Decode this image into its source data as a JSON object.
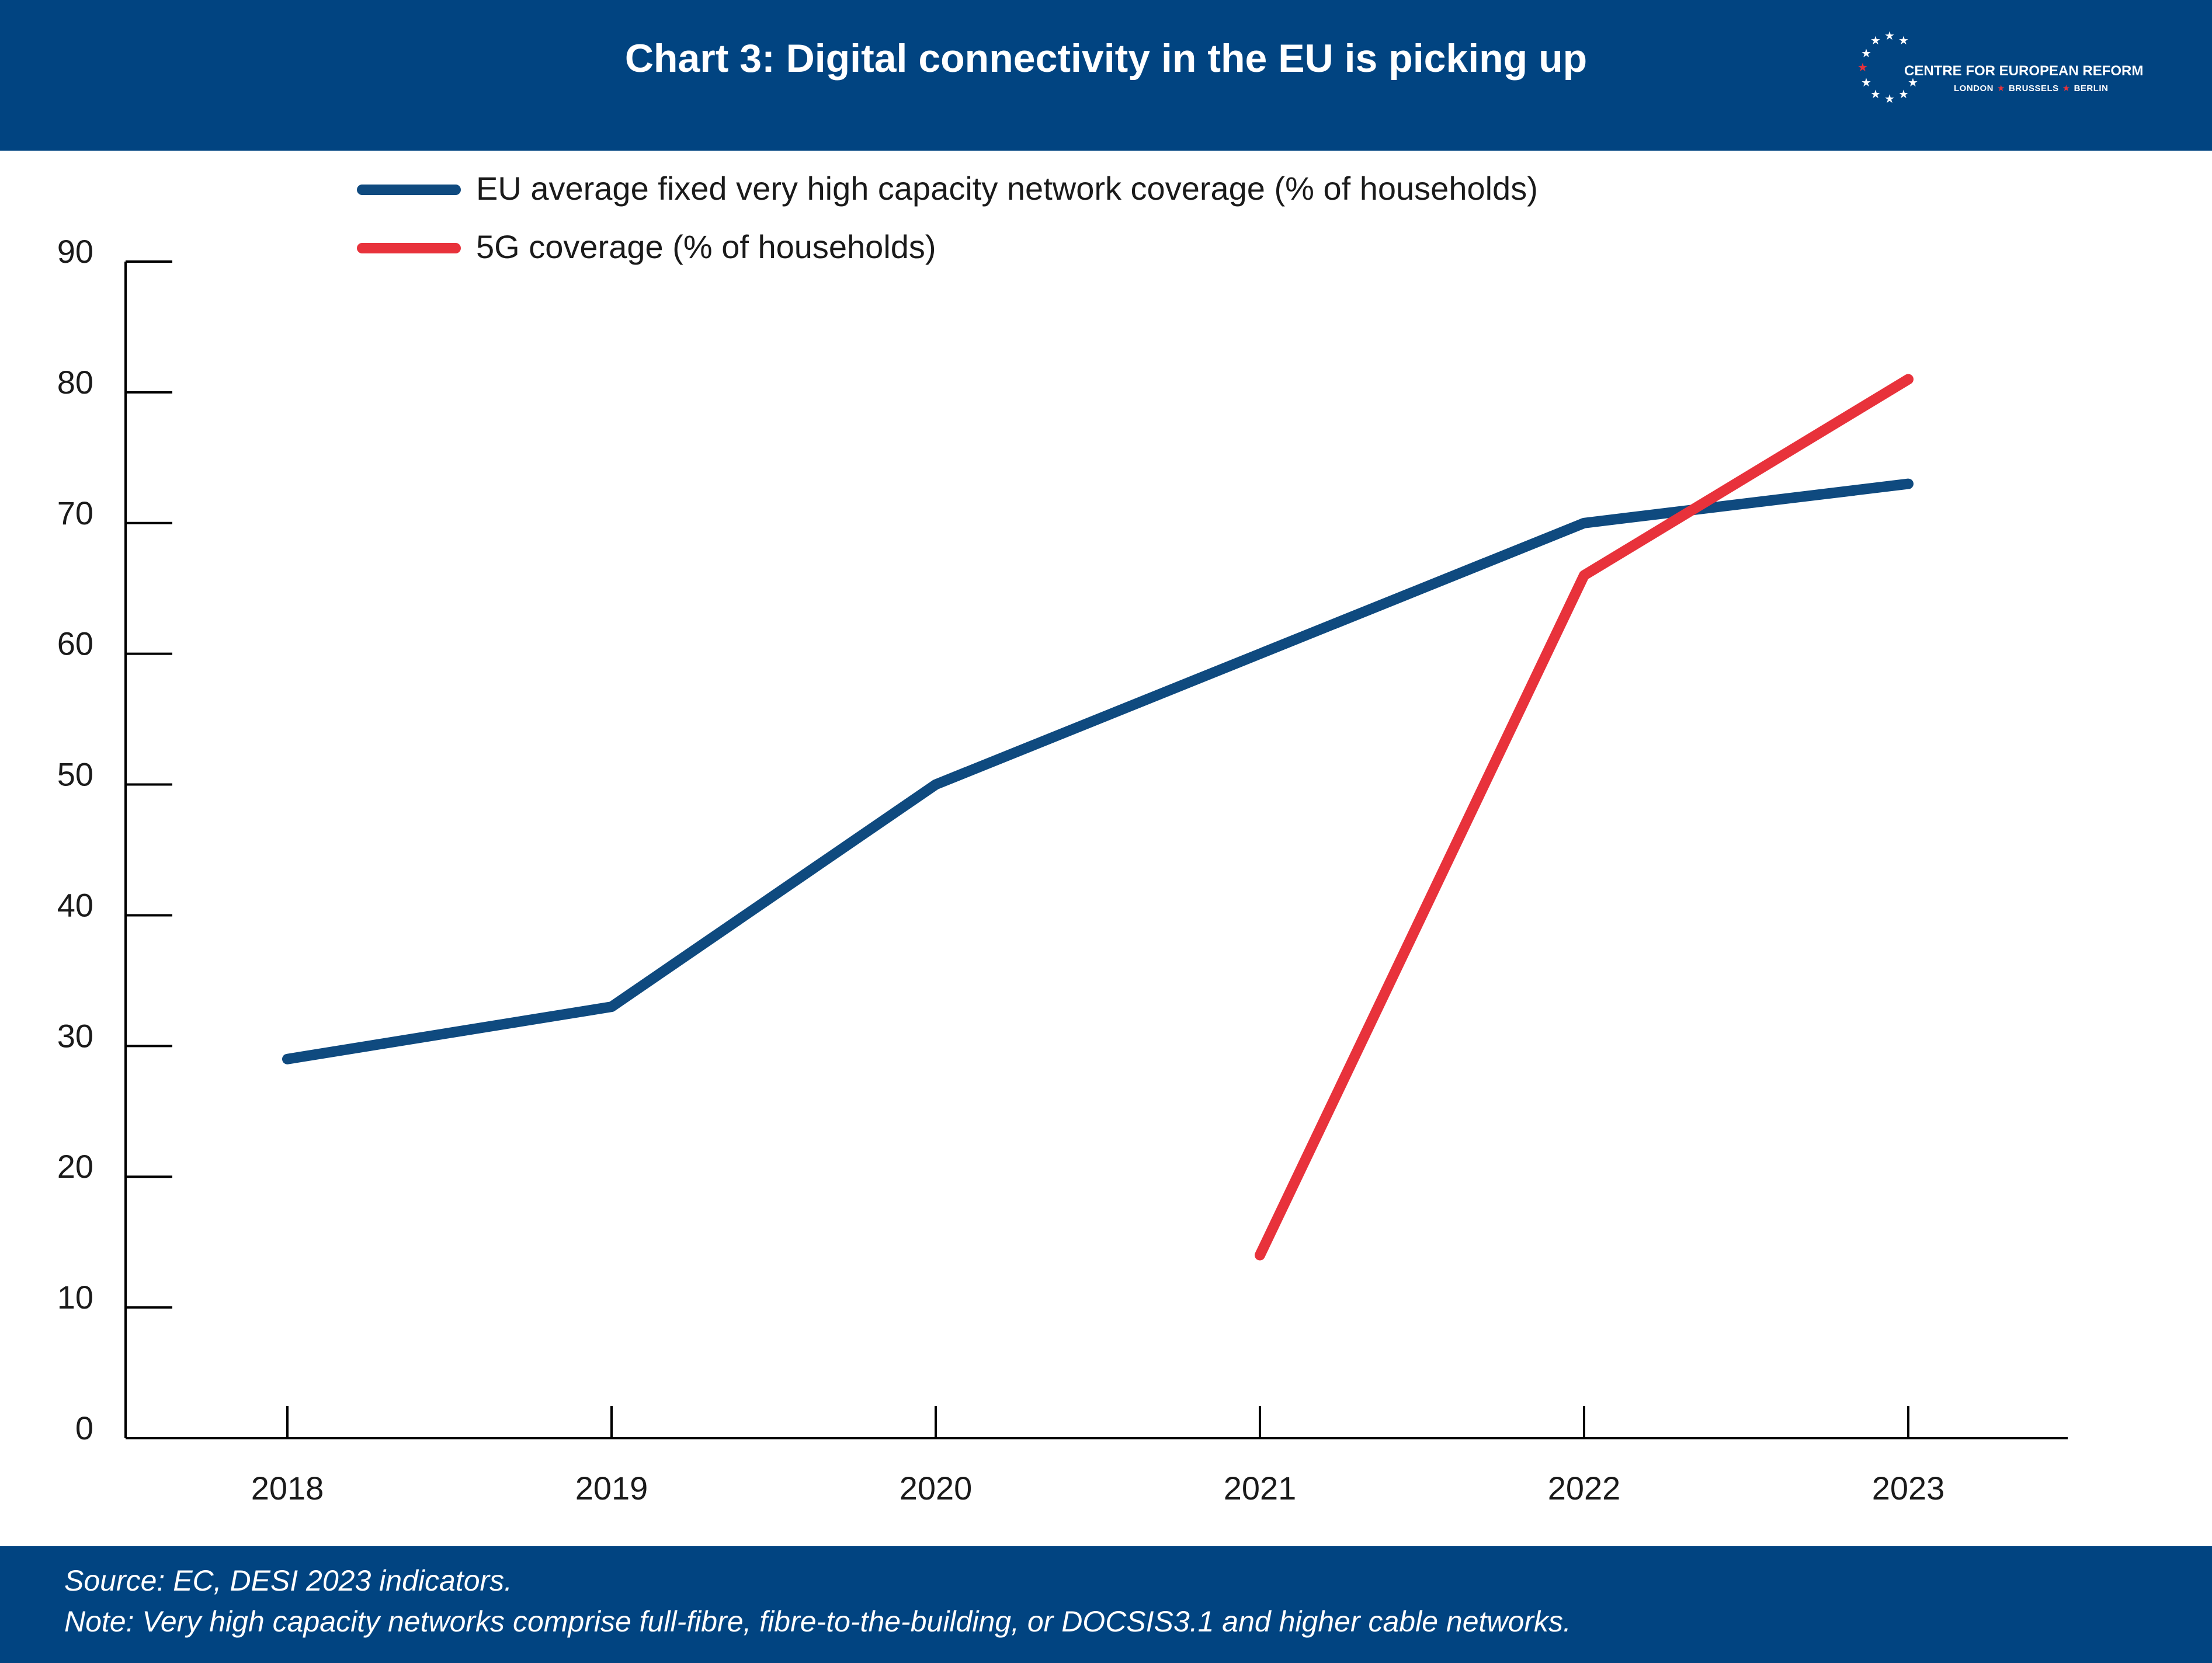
{
  "header": {
    "title": "Chart 3: Digital connectivity in the EU is picking up",
    "logo": {
      "name": "CENTRE FOR EUROPEAN REFORM",
      "cities": [
        "LONDON",
        "BRUSSELS",
        "BERLIN"
      ],
      "star_icon": "star-icon"
    }
  },
  "colors": {
    "header_bg": "#014481",
    "series_blue": "#0f4a7f",
    "series_red": "#e8323b",
    "axis": "#000000"
  },
  "chart_data": {
    "type": "line",
    "x": [
      "2018",
      "2019",
      "2020",
      "2021",
      "2022",
      "2023"
    ],
    "series": [
      {
        "name": "EU average fixed very high capacity network coverage (% of households)",
        "color": "#0f4a7f",
        "values": [
          29,
          33,
          50,
          60,
          70,
          73
        ]
      },
      {
        "name": "5G coverage (% of households)",
        "color": "#e8323b",
        "values": [
          null,
          null,
          null,
          14,
          66,
          81
        ]
      }
    ],
    "yticks": [
      0,
      10,
      20,
      30,
      40,
      50,
      60,
      70,
      80,
      90
    ],
    "ylim": [
      0,
      90
    ],
    "grid": false,
    "legend_position": "top"
  },
  "footer": {
    "source": "Source: EC, DESI 2023 indicators.",
    "note": "Note: Very high capacity networks comprise full-fibre, fibre-to-the-building, or DOCSIS3.1 and higher cable networks."
  }
}
